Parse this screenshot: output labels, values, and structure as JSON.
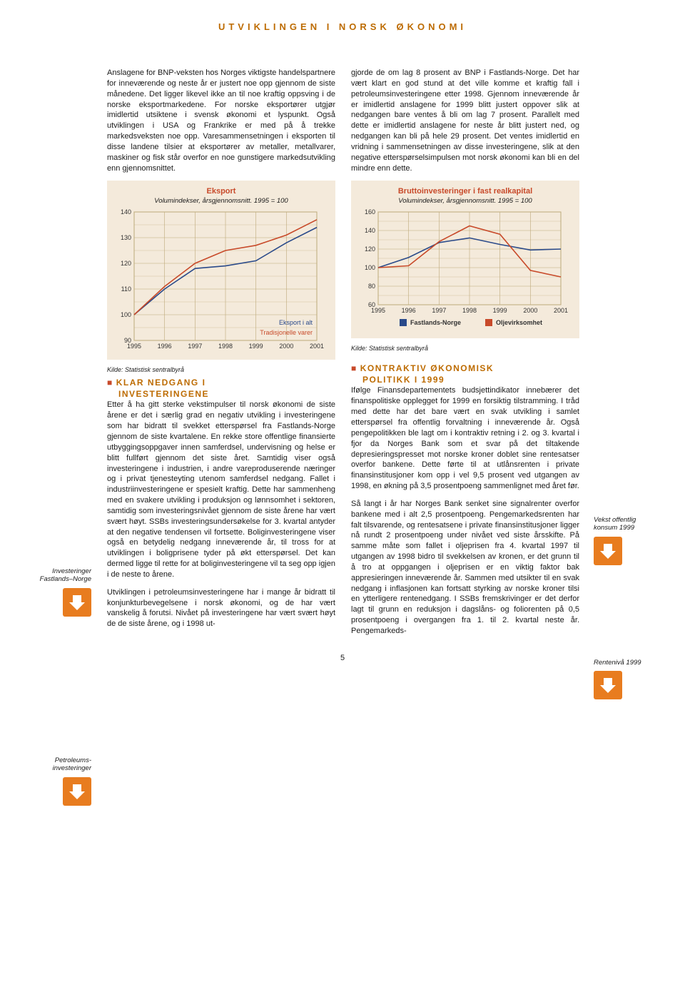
{
  "header": "UTVIKLINGEN I NORSK ØKONOMI",
  "page_number": "5",
  "left_col": {
    "para1": "Anslagene for BNP-veksten hos Norges viktigste handelspartnere for inneværende og neste år er justert noe opp gjennom de siste månedene. Det ligger likevel ikke an til noe kraftig oppsving i de norske eksportmarkedene. For norske eksportører utgjør imidlertid utsiktene i svensk økonomi et lyspunkt. Også utviklingen i USA og Frankrike er med på å trekke markedsveksten noe opp. Varesammensetningen i eksporten til disse landene tilsier at eksportører av metaller, metallvarer, maskiner og fisk står overfor en noe gunstigere markedsutvikling enn gjennomsnittet.",
    "sec1_title": "KLAR NEDGANG I",
    "sec1_title2": "INVESTERINGENE",
    "sec1_body": "Etter å ha gitt sterke vekstimpulser til norsk økonomi de siste årene er det i særlig grad en negativ utvikling i investeringene som har bidratt til svekket etterspørsel fra Fastlands-Norge gjennom de siste kvartalene. En rekke store offentlige finansierte utbyggingsoppgaver innen samferdsel, undervisning og helse er blitt fullført gjennom det siste året. Samtidig viser også investeringene i industrien, i andre vareproduserende næringer og i privat tjenesteyting utenom samferdsel nedgang. Fallet i industriinvesteringene er spesielt kraftig. Dette har sammenheng med en svakere utvikling i produksjon og lønnsomhet i sektoren, samtidig som investeringsnivået gjennom de siste årene har vært svært høyt. SSBs investeringsundersøkelse for 3. kvartal antyder at den negative tendensen vil fortsette. Boliginvesteringene viser også en betydelig nedgang inneværende år, til tross for at utviklingen i boligprisene tyder på økt etterspørsel. Det kan dermed ligge til rette for at boliginvesteringene vil ta seg opp igjen i de neste to årene.",
    "sec1_body2": "Utviklingen i petroleumsinvesteringene har i mange år bidratt til konjunkturbevegelsene i norsk økonomi, og de har vært vanskelig å forutsi. Nivået på investeringene har vært svært høyt de de siste årene, og i 1998 ut-"
  },
  "right_col": {
    "para1": "gjorde de om lag 8 prosent av BNP i Fastlands-Norge. Det har vært klart en god stund at det ville komme et kraftig fall i petroleumsinvesteringene etter 1998. Gjennom inneværende år er imidlertid anslagene for 1999 blitt justert oppover slik at nedgangen bare ventes å bli om lag 7 prosent. Parallelt med dette er imidlertid anslagene for neste år blitt justert ned, og nedgangen kan bli på hele 29 prosent. Det ventes imidlertid en vridning i sammensetningen av disse investeringene, slik at den negative etterspørselsimpulsen mot norsk økonomi kan bli en del mindre enn dette.",
    "sec2_title": "KONTRAKTIV ØKONOMISK",
    "sec2_title2": "POLITIKK I 1999",
    "sec2_body": "Ifølge Finansdepartementets budsjettindikator innebærer det finanspolitiske opplegget for 1999 en forsiktig tilstramming. I tråd med dette har det bare vært en svak utvikling i samlet etterspørsel fra offentlig forvaltning i inneværende år. Også pengepolitikken ble lagt om i kontraktiv retning i 2. og 3. kvartal i fjor da Norges Bank som et svar på det tiltakende depresieringspresset mot norske kroner doblet sine rentesatser overfor bankene. Dette førte til at utlånsrenten i private finansinstitusjoner kom opp i vel 9,5 prosent ved utgangen av 1998, en økning på 3,5 prosentpoeng sammenlignet med året før.",
    "sec2_body2": "Så langt i år har Norges Bank senket sine signalrenter overfor bankene med i alt 2,5 prosentpoeng. Pengemarkedsrenten har falt tilsvarende, og rentesatsene i private finansinstitusjoner ligger nå rundt 2 prosentpoeng under nivået ved siste årsskifte. På samme måte som fallet i oljeprisen fra 4. kvartal 1997 til utgangen av 1998 bidro til svekkelsen av kronen, er det grunn til å tro at oppgangen i oljeprisen er en viktig faktor bak appresieringen inneværende år. Sammen med utsikter til en svak nedgang i inflasjonen kan fortsatt styrking av norske kroner tilsi en ytterligere rentenedgang. I SSBs fremskrivinger er det derfor lagt til grunn en reduksjon i dagslåns- og foliorenten på 0,5 prosentpoeng i overgangen fra 1. til 2. kvartal neste år. Pengemarkeds-"
  },
  "chart1": {
    "title": "Eksport",
    "subtitle": "Volumindekser, årsgjennomsnitt. 1995 = 100",
    "source": "Kilde: Statistisk sentralbyrå",
    "y_ticks": [
      90,
      100,
      110,
      120,
      130,
      140
    ],
    "x_ticks": [
      "1995",
      "1996",
      "1997",
      "1998",
      "1999",
      "2000",
      "2001"
    ],
    "series": [
      {
        "name": "Eksport i alt",
        "color": "#2a4a8a",
        "values": [
          100,
          110,
          118,
          119,
          121,
          128,
          134
        ]
      },
      {
        "name": "Tradisjonelle varer",
        "color": "#c84a2a",
        "values": [
          100,
          111,
          120,
          125,
          127,
          131,
          137
        ]
      }
    ],
    "bg": "#f4eadb",
    "rule": "#bda97a",
    "legend1": "Eksport i alt",
    "legend2": "Tradisjonelle varer"
  },
  "chart2": {
    "title": "Bruttoinvesteringer i fast realkapital",
    "subtitle": "Volumindekser, årsgjennomsnitt. 1995 = 100",
    "source": "Kilde: Statistisk sentralbyrå",
    "y_ticks": [
      60,
      80,
      100,
      120,
      140,
      160
    ],
    "x_ticks": [
      "1995",
      "1996",
      "1997",
      "1998",
      "1999",
      "2000",
      "2001"
    ],
    "series": [
      {
        "name": "Fastlands-Norge",
        "color": "#2a4a8a",
        "values": [
          100,
          111,
          127,
          132,
          125,
          119,
          120
        ]
      },
      {
        "name": "Oljevirksomhet",
        "color": "#c84a2a",
        "values": [
          100,
          102,
          128,
          145,
          136,
          97,
          90
        ]
      }
    ],
    "bg": "#f4eadb",
    "rule": "#bda97a",
    "legend1": "Fastlands-Norge",
    "legend2": "Oljevirksomhet"
  },
  "margin": {
    "left1": "Investeringer Fastlands–Norge",
    "left2": "Petroleums-investeringer",
    "right1": "Vekst offentlig konsum 1999",
    "right2": "Rentenivå 1999"
  }
}
